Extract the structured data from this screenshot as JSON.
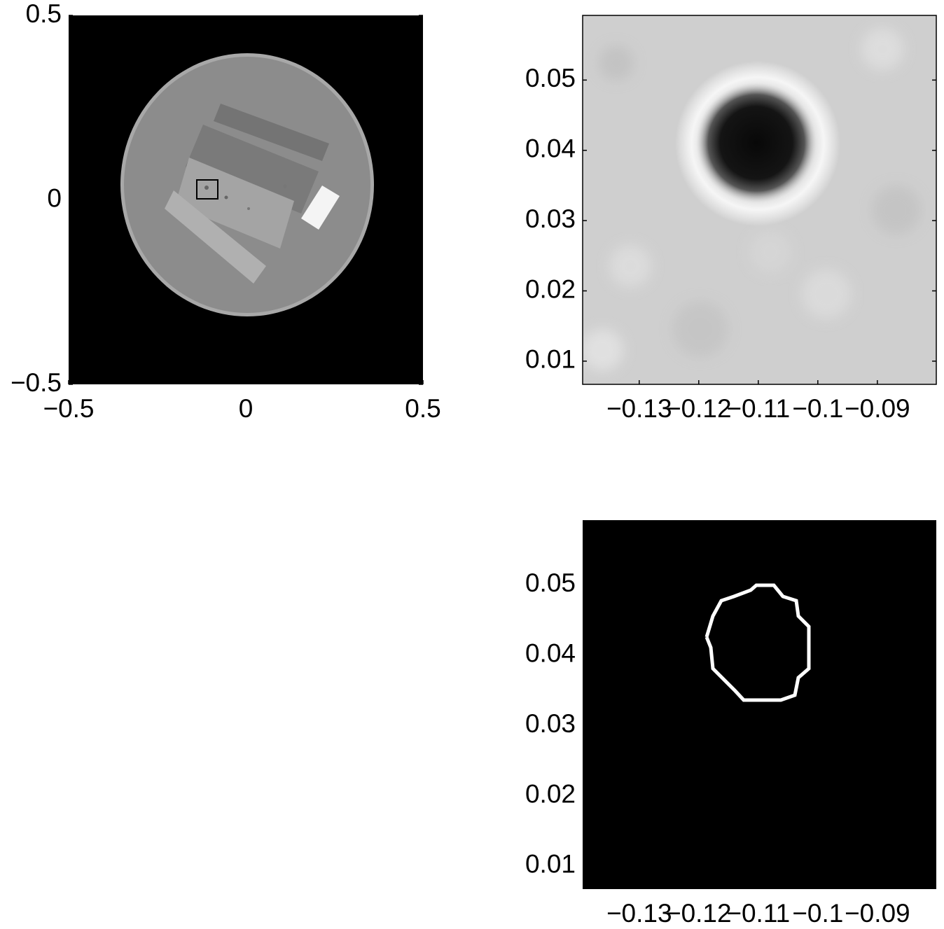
{
  "chart_data": [
    {
      "type": "image",
      "xlim": [
        -0.5,
        0.5
      ],
      "ylim": [
        -0.5,
        0.5
      ],
      "xticks": [
        {
          "value": -0.5,
          "label": "−0.5"
        },
        0,
        0.5
      ],
      "yticks": [
        {
          "value": -0.5,
          "label": "−0.5"
        },
        0,
        0.5
      ]
    },
    {
      "type": "image",
      "xlim": [
        -0.1395,
        -0.0801
      ],
      "ylim": [
        0.0067,
        0.0592
      ],
      "xticks": [
        {
          "value": -0.13,
          "label": "−0.13"
        },
        {
          "value": -0.12,
          "label": "−0.12"
        },
        {
          "value": -0.11,
          "label": "−0.11"
        },
        {
          "value": -0.1,
          "label": "−0.1"
        },
        {
          "value": -0.09,
          "label": "−0.09"
        }
      ],
      "yticks": [
        0.01,
        0.02,
        0.03,
        0.04,
        0.05
      ]
    },
    {
      "type": "image",
      "xlim": [
        -0.1395,
        -0.0801
      ],
      "ylim": [
        0.0067,
        0.0592
      ],
      "xticks": [
        {
          "value": -0.13,
          "label": "−0.13"
        },
        {
          "value": -0.12,
          "label": "−0.12"
        },
        {
          "value": -0.11,
          "label": "−0.11"
        },
        {
          "value": -0.1,
          "label": "−0.1"
        },
        {
          "value": -0.09,
          "label": "−0.09"
        }
      ],
      "yticks": [
        0.01,
        0.02,
        0.03,
        0.04,
        0.05
      ]
    }
  ]
}
